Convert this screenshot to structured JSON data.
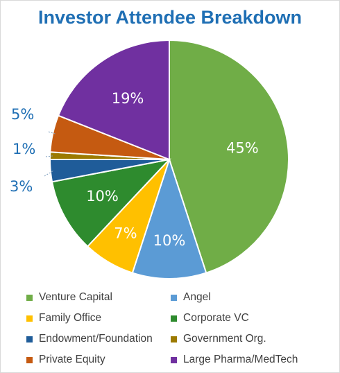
{
  "chart_data": {
    "type": "pie",
    "title": "Investor Attendee Breakdown",
    "categories": [
      "Venture Capital",
      "Angel",
      "Family Office",
      "Corporate VC",
      "Endowment/Foundation",
      "Government Org.",
      "Private Equity",
      "Large Pharma/MedTech"
    ],
    "values": [
      45,
      10,
      7,
      10,
      3,
      1,
      5,
      19
    ],
    "labels": [
      "45%",
      "10%",
      "7%",
      "10%",
      "3%",
      "1%",
      "5%",
      "19%"
    ],
    "colors": [
      "#70ad47",
      "#5b9bd5",
      "#ffc000",
      "#2e8b2e",
      "#1f5c99",
      "#9c7a00",
      "#c55a11",
      "#7030a0"
    ],
    "legend_position": "bottom"
  }
}
